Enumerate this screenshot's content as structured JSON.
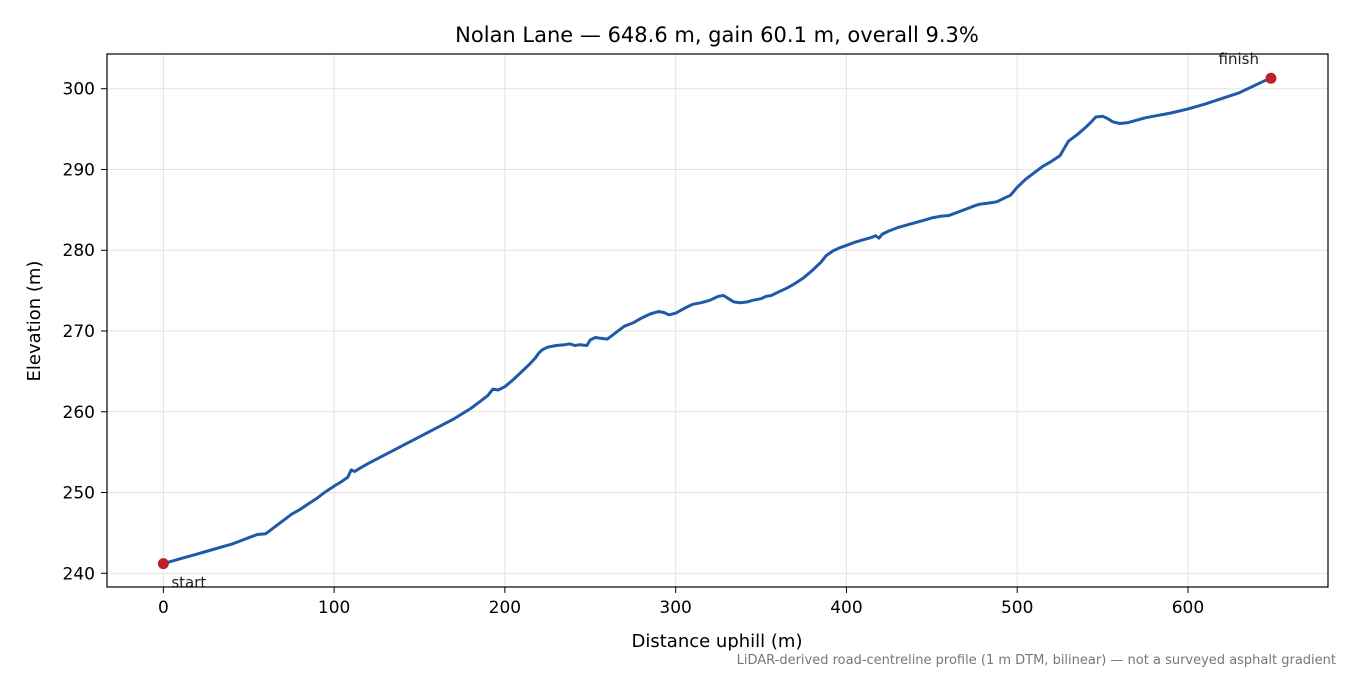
{
  "chart_data": {
    "type": "line",
    "title": "Nolan Lane — 648.6 m, gain 60.1 m, overall 9.3%",
    "xlabel": "Distance uphill (m)",
    "ylabel": "Elevation (m)",
    "xlim": [
      -33,
      682
    ],
    "ylim": [
      238.3,
      304.3
    ],
    "xticks": [
      0,
      100,
      200,
      300,
      400,
      500,
      600
    ],
    "yticks": [
      240,
      250,
      260,
      270,
      280,
      290,
      300
    ],
    "grid": true,
    "line_color": "#1f5aa6",
    "marker_color": "#c0202a",
    "footnote": "LiDAR-derived road-centreline profile (1 m DTM, bilinear) — not a surveyed asphalt gradient",
    "annotations": [
      {
        "text": "start",
        "x": 0,
        "y": 241.2
      },
      {
        "text": "finish",
        "x": 648.6,
        "y": 301.3
      }
    ],
    "series": [
      {
        "x": [
          0,
          5,
          10,
          15,
          20,
          25,
          30,
          35,
          40,
          45,
          50,
          55,
          60,
          65,
          70,
          75,
          80,
          85,
          90,
          95,
          100,
          104,
          108,
          110,
          112,
          115,
          120,
          130,
          140,
          150,
          160,
          170,
          180,
          185,
          190,
          193,
          196,
          200,
          205,
          210,
          215,
          218,
          220,
          222,
          225,
          230,
          235,
          238,
          241,
          244,
          248,
          250,
          253,
          256,
          260,
          265,
          270,
          275,
          280,
          285,
          290,
          293,
          296,
          300,
          305,
          310,
          315,
          320,
          325,
          328,
          331,
          334,
          338,
          342,
          345,
          350,
          353,
          356,
          360,
          365,
          370,
          375,
          380,
          385,
          388,
          392,
          396,
          400,
          405,
          410,
          415,
          417,
          419,
          421,
          425,
          430,
          435,
          440,
          445,
          450,
          455,
          460,
          465,
          470,
          475,
          478,
          482,
          485,
          488,
          490,
          493,
          496,
          500,
          505,
          510,
          515,
          520,
          525,
          530,
          535,
          540,
          543,
          546,
          550,
          553,
          556,
          560,
          565,
          570,
          575,
          580,
          590,
          600,
          610,
          620,
          630,
          640,
          645,
          648.6
        ],
        "y": [
          241.2,
          241.5,
          241.8,
          242.1,
          242.4,
          242.7,
          243.0,
          243.3,
          243.6,
          244.0,
          244.4,
          244.8,
          244.9,
          245.7,
          246.5,
          247.3,
          247.9,
          248.6,
          249.3,
          250.1,
          250.8,
          251.3,
          251.9,
          252.8,
          252.6,
          253.0,
          253.6,
          254.7,
          255.8,
          256.9,
          258.0,
          259.1,
          260.4,
          261.2,
          262.0,
          262.8,
          262.7,
          263.1,
          264.0,
          265.0,
          266.0,
          266.7,
          267.3,
          267.7,
          268.0,
          268.2,
          268.3,
          268.4,
          268.2,
          268.3,
          268.2,
          268.9,
          269.2,
          269.1,
          269.0,
          269.8,
          270.6,
          271.0,
          271.6,
          272.1,
          272.4,
          272.3,
          272.0,
          272.2,
          272.8,
          273.3,
          273.5,
          273.8,
          274.3,
          274.4,
          274.0,
          273.6,
          273.5,
          273.6,
          273.8,
          274.0,
          274.3,
          274.4,
          274.8,
          275.3,
          275.9,
          276.6,
          277.5,
          278.5,
          279.3,
          279.9,
          280.3,
          280.6,
          281.0,
          281.3,
          281.6,
          281.8,
          281.5,
          282.0,
          282.4,
          282.8,
          283.1,
          283.4,
          283.7,
          284.0,
          284.2,
          284.3,
          284.7,
          285.1,
          285.5,
          285.7,
          285.8,
          285.9,
          286.0,
          286.2,
          286.5,
          286.8,
          287.8,
          288.8,
          289.6,
          290.4,
          291.0,
          291.7,
          293.5,
          294.3,
          295.2,
          295.8,
          296.5,
          296.6,
          296.3,
          295.9,
          295.7,
          295.8,
          296.1,
          296.4,
          296.6,
          297.0,
          297.5,
          298.1,
          298.8,
          299.5,
          300.5,
          301.0,
          301.3
        ]
      }
    ]
  }
}
